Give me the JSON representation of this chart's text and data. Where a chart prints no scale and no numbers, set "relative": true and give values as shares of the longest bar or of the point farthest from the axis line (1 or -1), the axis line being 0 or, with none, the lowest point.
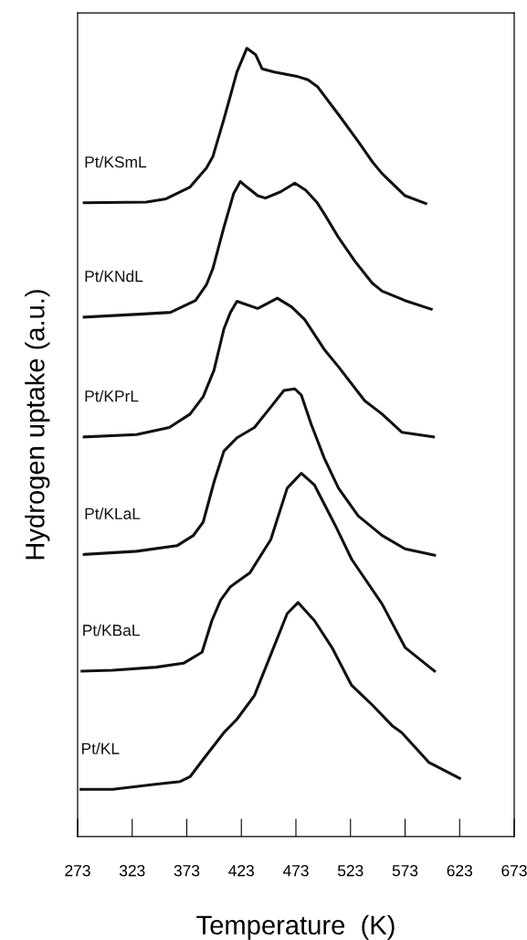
{
  "chart_data": {
    "type": "line",
    "xlabel": "Temperature  (K)",
    "ylabel": "Hydrogen uptake (a.u.)",
    "relative": true,
    "tick_labels": "x",
    "grid": false,
    "legend": false,
    "marker": "none",
    "line_style": "solid",
    "xlim": [
      273,
      673
    ],
    "xticks": [
      273,
      323,
      373,
      423,
      473,
      523,
      573,
      623,
      673
    ],
    "series": [
      {
        "name": "Pt/KSmL",
        "color": "#111111",
        "x": [
          279,
          336,
          354,
          376,
          391,
          397,
          407,
          419,
          428,
          436,
          442,
          453,
          475,
          484,
          493,
          512,
          530,
          543,
          552,
          573,
          592
        ],
        "values": [
          0.804,
          0.805,
          0.809,
          0.824,
          0.848,
          0.863,
          0.91,
          0.97,
          1.0,
          0.992,
          0.974,
          0.97,
          0.964,
          0.96,
          0.951,
          0.916,
          0.882,
          0.856,
          0.841,
          0.813,
          0.803
        ]
      },
      {
        "name": "Pt/KNdL",
        "color": "#111111",
        "x": [
          279,
          333,
          358,
          381,
          391,
          397,
          407,
          416,
          422,
          428,
          438,
          445,
          459,
          472,
          482,
          492,
          499,
          512,
          527,
          543,
          552,
          573,
          597
        ],
        "values": [
          0.659,
          0.663,
          0.665,
          0.68,
          0.7,
          0.721,
          0.773,
          0.816,
          0.831,
          0.824,
          0.813,
          0.81,
          0.818,
          0.829,
          0.82,
          0.805,
          0.79,
          0.76,
          0.73,
          0.702,
          0.692,
          0.68,
          0.669
        ]
      },
      {
        "name": "Pt/KPrL",
        "color": "#111111",
        "x": [
          279,
          327,
          357,
          376,
          388,
          398,
          407,
          413,
          419,
          438,
          456,
          469,
          481,
          499,
          512,
          536,
          552,
          570,
          599
        ],
        "values": [
          0.507,
          0.51,
          0.519,
          0.536,
          0.558,
          0.592,
          0.644,
          0.665,
          0.679,
          0.67,
          0.683,
          0.672,
          0.656,
          0.618,
          0.596,
          0.553,
          0.536,
          0.513,
          0.507
        ]
      },
      {
        "name": "Pt/KLaL",
        "color": "#111111",
        "x": [
          279,
          327,
          364,
          379,
          388,
          398,
          407,
          419,
          435,
          450,
          462,
          472,
          478,
          487,
          499,
          512,
          530,
          552,
          573,
          600
        ],
        "values": [
          0.358,
          0.362,
          0.369,
          0.382,
          0.399,
          0.45,
          0.489,
          0.506,
          0.519,
          0.545,
          0.566,
          0.568,
          0.56,
          0.523,
          0.48,
          0.442,
          0.407,
          0.382,
          0.365,
          0.357
        ]
      },
      {
        "name": "Pt/KBaL",
        "color": "#111111",
        "x": [
          277,
          305,
          345,
          370,
          387,
          396,
          404,
          413,
          431,
          450,
          465,
          478,
          490,
          509,
          524,
          552,
          573,
          600
        ],
        "values": [
          0.21,
          0.211,
          0.215,
          0.22,
          0.234,
          0.274,
          0.3,
          0.317,
          0.335,
          0.377,
          0.442,
          0.461,
          0.446,
          0.395,
          0.352,
          0.295,
          0.24,
          0.21
        ]
      },
      {
        "name": "Pt/KL",
        "color": "#111111",
        "x": [
          276,
          305,
          342,
          367,
          376,
          388,
          407,
          419,
          435,
          450,
          465,
          475,
          490,
          506,
          524,
          543,
          561,
          570,
          595,
          623
        ],
        "values": [
          0.06,
          0.06,
          0.066,
          0.07,
          0.076,
          0.098,
          0.132,
          0.149,
          0.179,
          0.231,
          0.283,
          0.297,
          0.274,
          0.24,
          0.192,
          0.167,
          0.141,
          0.132,
          0.094,
          0.074
        ]
      }
    ]
  }
}
